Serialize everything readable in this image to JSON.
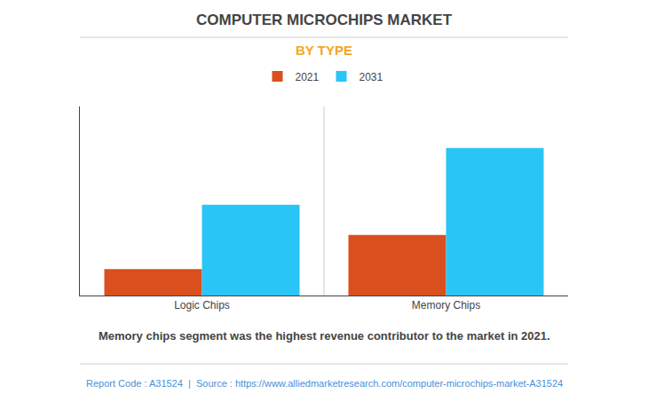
{
  "chart_data": {
    "type": "bar",
    "title": "COMPUTER MICROCHIPS MARKET",
    "subtitle": "BY TYPE",
    "categories": [
      "Logic Chips",
      "Memory Chips"
    ],
    "series": [
      {
        "name": "2021",
        "color": "#d94f1e",
        "values": [
          14,
          32
        ]
      },
      {
        "name": "2031",
        "color": "#29c5f6",
        "values": [
          48,
          78
        ]
      }
    ],
    "ylim": [
      0,
      100
    ],
    "yticks": [],
    "grid": false,
    "tick_labels": "x",
    "legend": "top",
    "annotations": [
      "Memory chips segment was the highest revenue contributor to the market in 2021.",
      "Report Code : A31524  |  Source : https://www.alliedmarketresearch.com/computer-microchips-market-A31524"
    ]
  }
}
